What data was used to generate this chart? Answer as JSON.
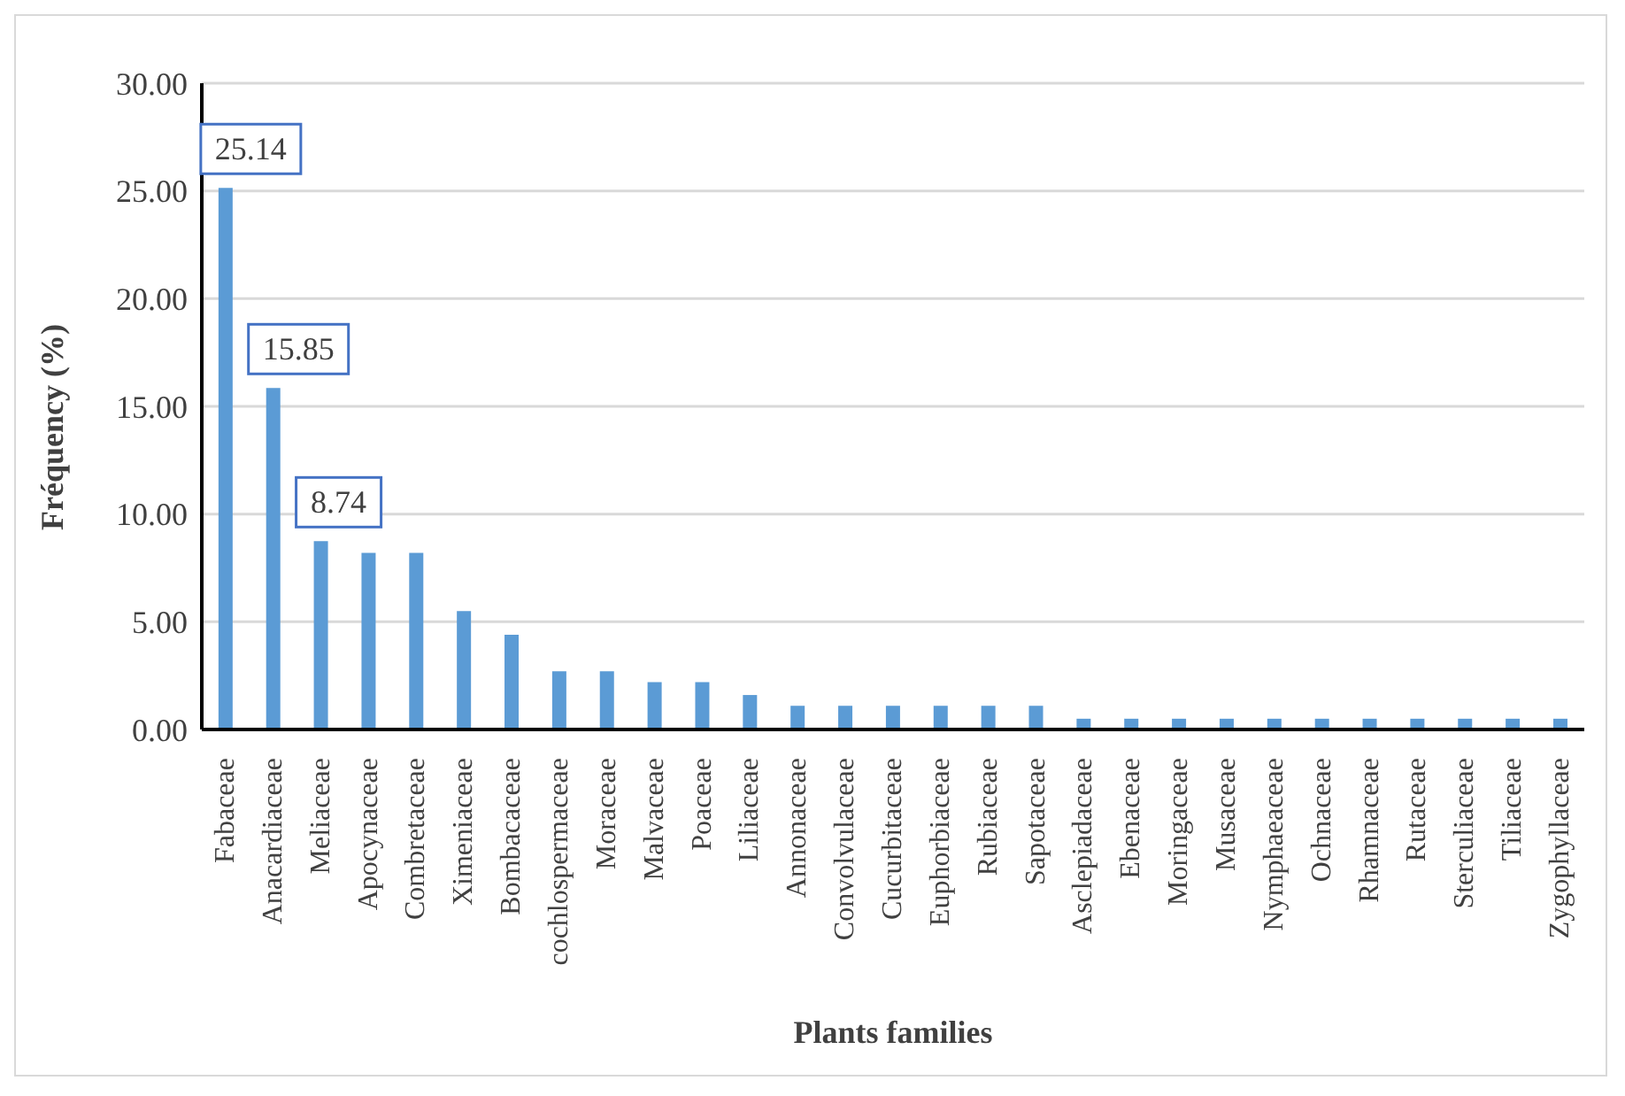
{
  "chart_data": {
    "type": "bar",
    "xlabel": "Plants families",
    "ylabel": "Fréquency (%)",
    "categories": [
      "Fabaceae",
      "Anacardiaceae",
      "Meliaceae",
      "Apocynaceae",
      "Combretaceae",
      "Ximeniaceae",
      "Bombacaceae",
      "cochlospermaceae",
      "Moraceae",
      "Malvaceae",
      "Poaceae",
      "Liliaceae",
      "Annonaceae",
      "Convolvulaceae",
      "Cucurbitaceae",
      "Euphorbiaceae",
      "Rubiaceae",
      "Sapotaceae",
      "Asclepiadaceae",
      "Ebenaceae",
      "Moringaceae",
      "Musaceae",
      "Nymphaeaceae",
      "Ochnaceae",
      "Rhamnaceae",
      "Rutaceae",
      "Sterculiaceae",
      "Tiliaceae",
      "Zygophyllaceae"
    ],
    "values": [
      25.14,
      15.85,
      8.74,
      8.2,
      8.2,
      5.5,
      4.4,
      2.7,
      2.7,
      2.2,
      2.2,
      1.6,
      1.1,
      1.1,
      1.1,
      1.1,
      1.1,
      1.1,
      0.5,
      0.5,
      0.5,
      0.5,
      0.5,
      0.5,
      0.5,
      0.5,
      0.5,
      0.5,
      0.5
    ],
    "value_labels": [
      "25.14",
      "15.85",
      "8.74",
      null,
      null,
      null,
      null,
      null,
      null,
      null,
      null,
      null,
      null,
      null,
      null,
      null,
      null,
      null,
      null,
      null,
      null,
      null,
      null,
      null,
      null,
      null,
      null,
      null,
      null
    ],
    "color": "#5b9bd5",
    "ylim": [
      0,
      30
    ],
    "yticks": [
      {
        "value": 0,
        "label": "0.00"
      },
      {
        "value": 5,
        "label": "5.00"
      },
      {
        "value": 10,
        "label": "10.00"
      },
      {
        "value": 15,
        "label": "15.00"
      },
      {
        "value": 20,
        "label": "20.00"
      },
      {
        "value": 25,
        "label": "25.00"
      },
      {
        "value": 30,
        "label": "30.00"
      }
    ],
    "grid": "y",
    "legend": false
  }
}
